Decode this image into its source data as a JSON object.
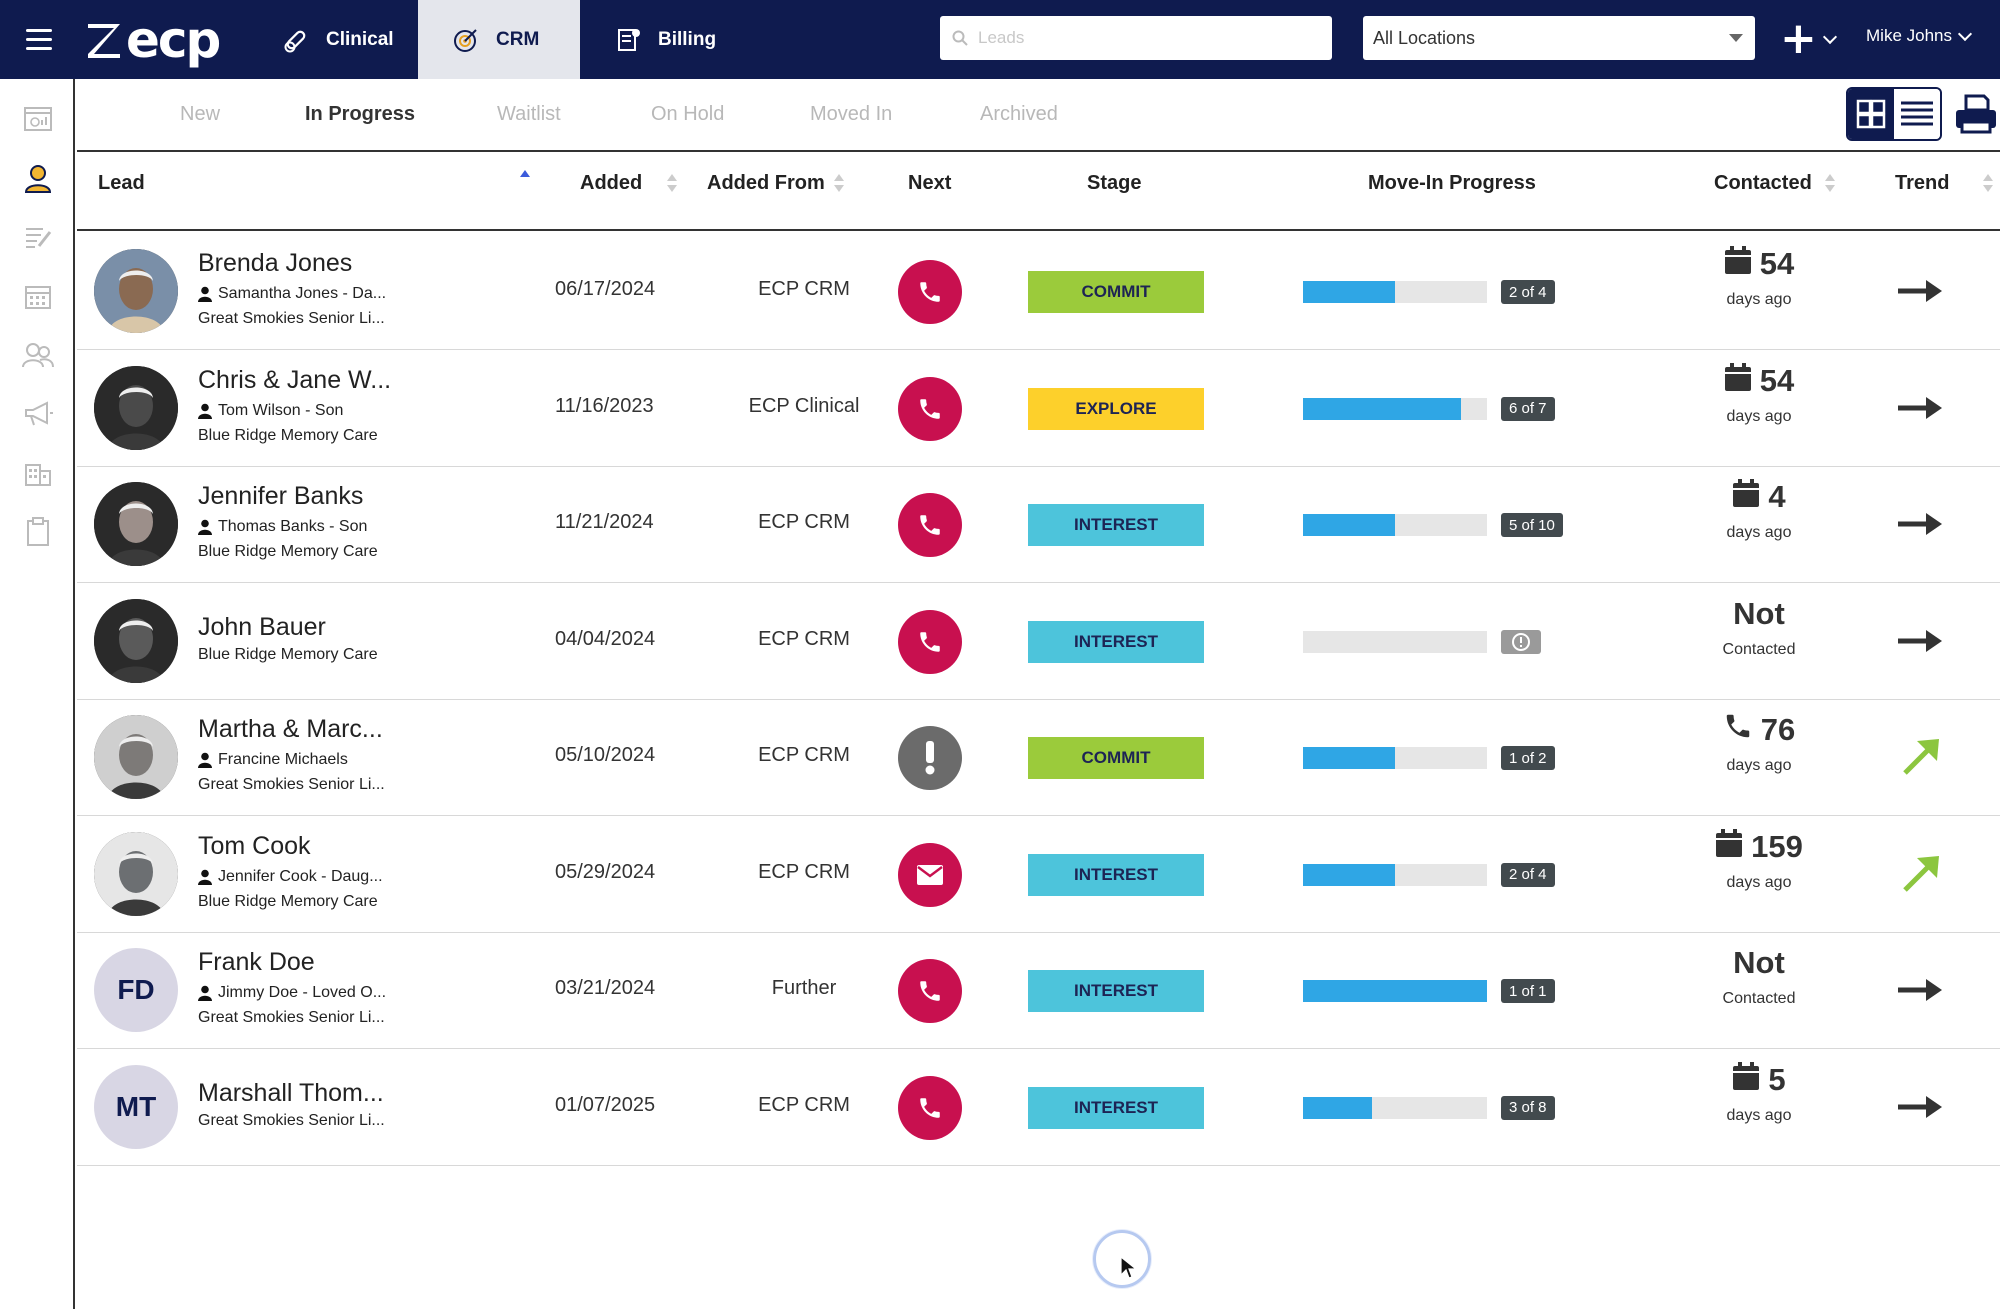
{
  "app": {
    "logo_text": "ecp",
    "modules": [
      {
        "label": "Clinical",
        "icon": "pills-icon"
      },
      {
        "label": "CRM",
        "icon": "target-icon"
      },
      {
        "label": "Billing",
        "icon": "invoice-icon"
      }
    ],
    "search_placeholder": "Leads",
    "location": "All Locations",
    "user": "Mike Johns"
  },
  "subtabs": [
    "New",
    "In Progress",
    "Waitlist",
    "On Hold",
    "Moved In",
    "Archived"
  ],
  "active_subtab": "In Progress",
  "columns": {
    "lead": "Lead",
    "added": "Added",
    "added_from": "Added From",
    "next": "Next",
    "stage": "Stage",
    "move_in": "Move-In Progress",
    "contacted": "Contacted",
    "trend": "Trend"
  },
  "colors": {
    "navy": "#0f1b4f",
    "action_red": "#c8104f",
    "commit": "#9bcb3b",
    "explore": "#fdd02b",
    "interest": "#4dc4db",
    "progress": "#2fa6e5",
    "trend_up": "#8cc63f"
  },
  "rows": [
    {
      "name": "Brenda Jones",
      "contact": "Samantha Jones - Da...",
      "community": "Great Smokies Senior Li...",
      "added": "06/17/2024",
      "added_from": "ECP CRM",
      "next": "phone-icon",
      "stage": "COMMIT",
      "progress_fraction": 0.5,
      "progress_label": "2 of 4",
      "contacted_value": "54",
      "contacted_icon": "calendar-icon",
      "contacted_sub": "days ago",
      "trend": "right-arrow-icon"
    },
    {
      "name": "Chris & Jane W...",
      "contact": "Tom Wilson - Son",
      "community": "Blue Ridge Memory Care",
      "added": "11/16/2023",
      "added_from": "ECP Clinical",
      "next": "phone-icon",
      "stage": "EXPLORE",
      "progress_fraction": 0.857,
      "progress_label": "6 of 7",
      "contacted_value": "54",
      "contacted_icon": "calendar-icon",
      "contacted_sub": "days ago",
      "trend": "right-arrow-icon"
    },
    {
      "name": "Jennifer Banks",
      "contact": "Thomas Banks - Son",
      "community": "Blue Ridge Memory Care",
      "added": "11/21/2024",
      "added_from": "ECP CRM",
      "next": "phone-icon",
      "stage": "INTEREST",
      "progress_fraction": 0.5,
      "progress_label": "5 of 10",
      "contacted_value": "4",
      "contacted_icon": "calendar-icon",
      "contacted_sub": "days ago",
      "trend": "right-arrow-icon"
    },
    {
      "name": "John Bauer",
      "contact": "",
      "community": "Blue Ridge Memory Care",
      "added": "04/04/2024",
      "added_from": "ECP CRM",
      "next": "phone-icon",
      "stage": "INTEREST",
      "progress_fraction": 0,
      "progress_label": "",
      "contacted_value": "Not",
      "contacted_icon": "",
      "contacted_sub": "Contacted",
      "trend": "right-arrow-icon"
    },
    {
      "name": "Martha & Marc...",
      "contact": "Francine Michaels",
      "community": "Great Smokies Senior Li...",
      "added": "05/10/2024",
      "added_from": "ECP CRM",
      "next": "alert-icon",
      "stage": "COMMIT",
      "progress_fraction": 0.5,
      "progress_label": "1 of 2",
      "contacted_value": "76",
      "contacted_icon": "phone-icon",
      "contacted_sub": "days ago",
      "trend": "up-right-arrow-icon"
    },
    {
      "name": "Tom Cook",
      "contact": "Jennifer Cook - Daug...",
      "community": "Blue Ridge Memory Care",
      "added": "05/29/2024",
      "added_from": "ECP CRM",
      "next": "envelope-icon",
      "stage": "INTEREST",
      "progress_fraction": 0.5,
      "progress_label": "2 of 4",
      "contacted_value": "159",
      "contacted_icon": "calendar-icon",
      "contacted_sub": "days ago",
      "trend": "up-right-arrow-icon"
    },
    {
      "name": "Frank Doe",
      "initials": "FD",
      "contact": "Jimmy Doe - Loved O...",
      "community": "Great Smokies Senior Li...",
      "added": "03/21/2024",
      "added_from": "Further",
      "next": "phone-icon",
      "stage": "INTEREST",
      "progress_fraction": 1.0,
      "progress_label": "1 of 1",
      "contacted_value": "Not",
      "contacted_icon": "",
      "contacted_sub": "Contacted",
      "trend": "right-arrow-icon"
    },
    {
      "name": "Marshall Thom...",
      "initials": "MT",
      "contact": "",
      "community": "Great Smokies Senior Li...",
      "added": "01/07/2025",
      "added_from": "ECP CRM",
      "next": "phone-icon",
      "stage": "INTEREST",
      "progress_fraction": 0.375,
      "progress_label": "3 of 8",
      "contacted_value": "5",
      "contacted_icon": "calendar-icon",
      "contacted_sub": "days ago",
      "trend": "right-arrow-icon"
    }
  ]
}
